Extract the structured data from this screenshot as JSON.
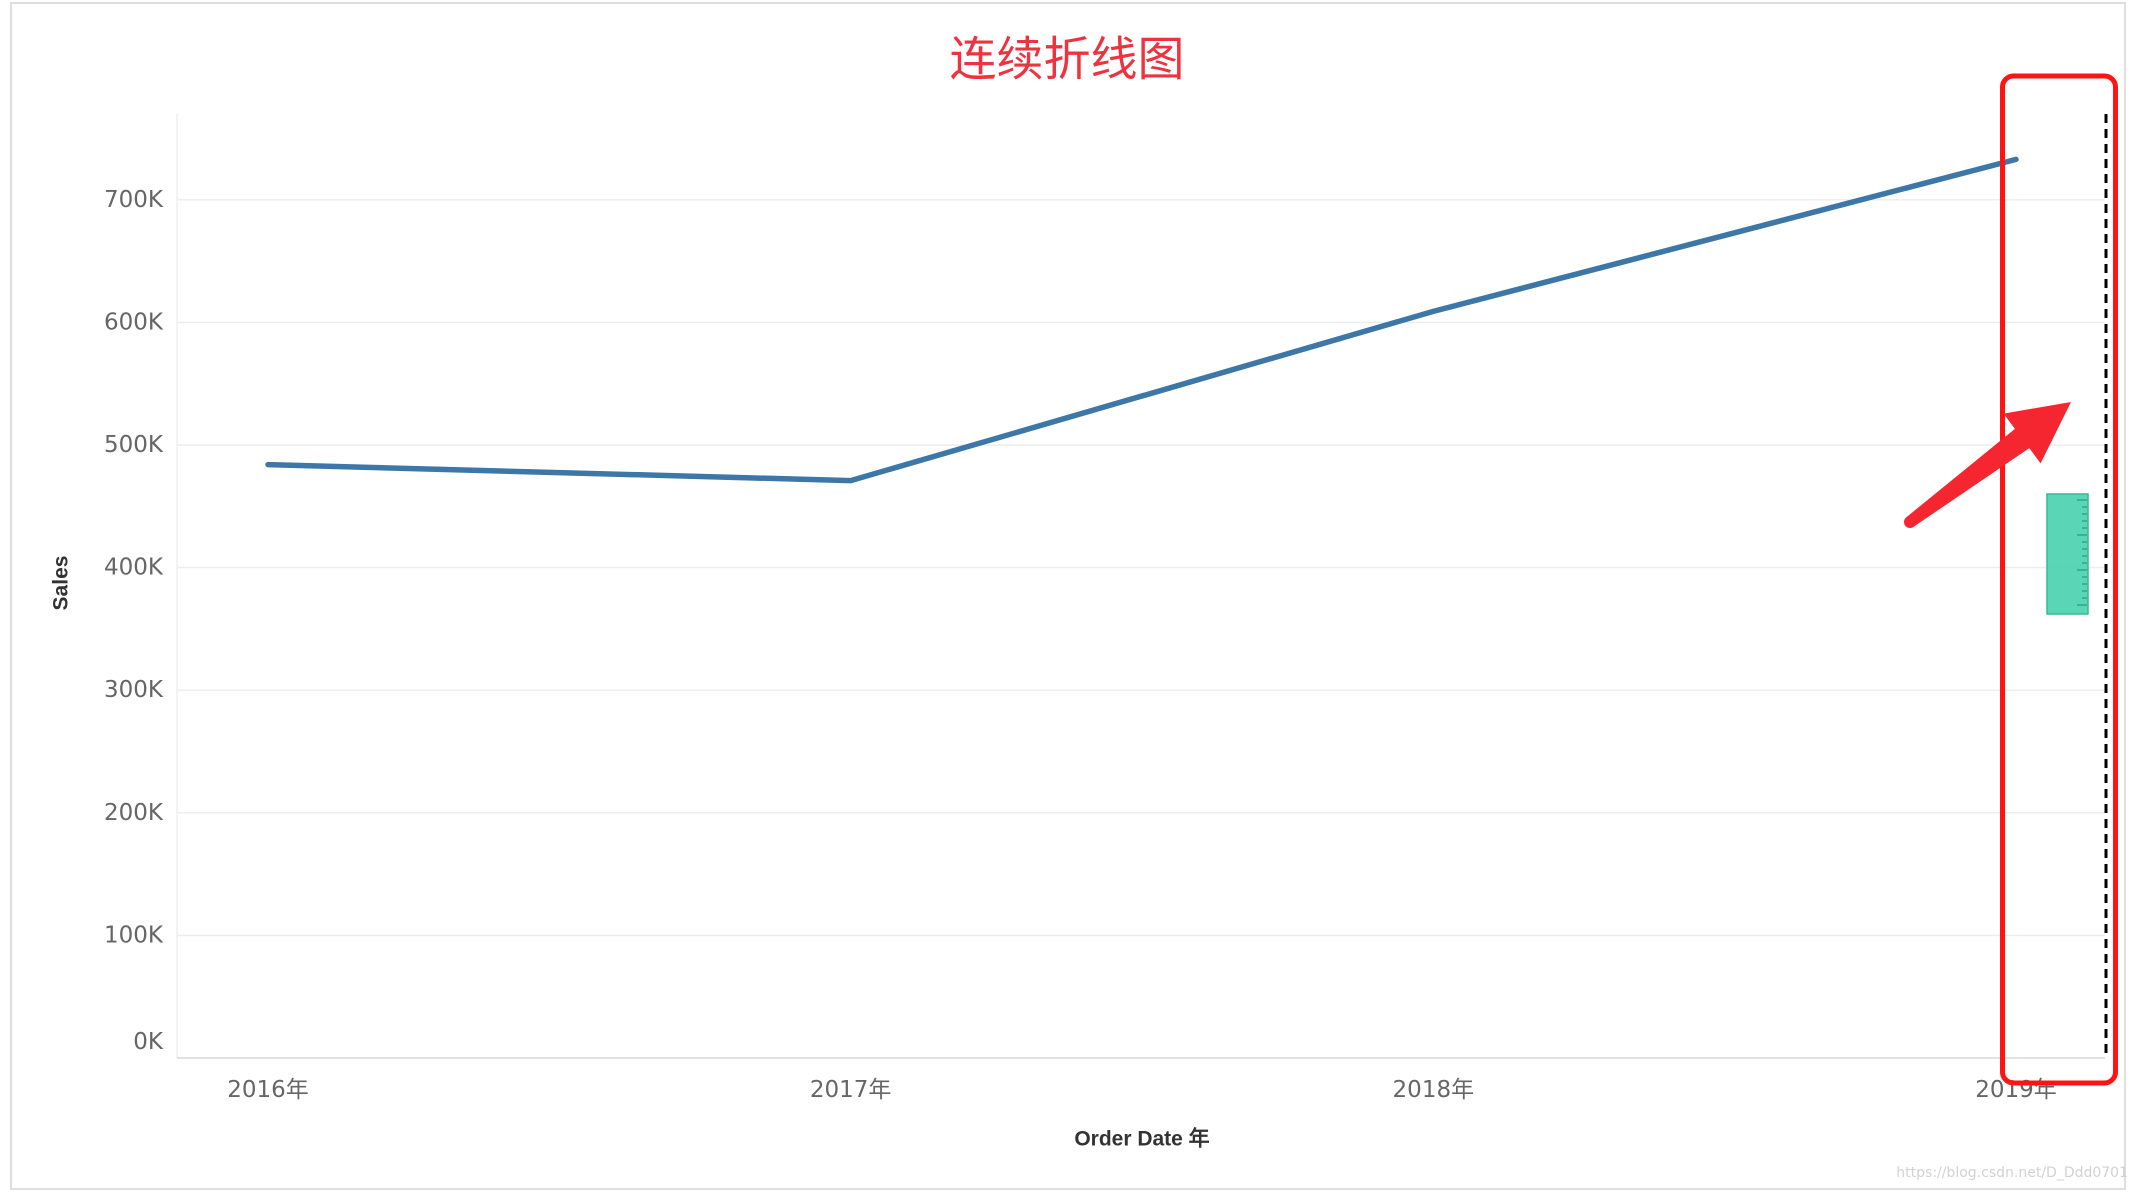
{
  "chart_data": {
    "type": "line",
    "title": "连续折线图",
    "title_color": "#ee3340",
    "xlabel": "Order Date 年",
    "ylabel": "Sales",
    "categories": [
      "2016年",
      "2017年",
      "2018年",
      "2019年"
    ],
    "series": [
      {
        "values": [
          484000,
          471000,
          609000,
          733000
        ]
      }
    ],
    "yticks": [
      {
        "value": 0,
        "label": "0K"
      },
      {
        "value": 100000,
        "label": "100K"
      },
      {
        "value": 200000,
        "label": "200K"
      },
      {
        "value": 300000,
        "label": "300K"
      },
      {
        "value": 400000,
        "label": "400K"
      },
      {
        "value": 500000,
        "label": "500K"
      },
      {
        "value": 600000,
        "label": "600K"
      },
      {
        "value": 700000,
        "label": "700K"
      }
    ],
    "ylim": [
      0,
      770000
    ],
    "grid": true,
    "legend": "none",
    "line_color": "#3d77a8"
  },
  "annotations": {
    "highlight_box_color": "#ff1414",
    "arrow_color": "#f5262f",
    "ruler_color": "#52d3b3",
    "dashed_line_color": "#000000"
  },
  "watermark": "https://blog.csdn.net/D_Ddd0701"
}
